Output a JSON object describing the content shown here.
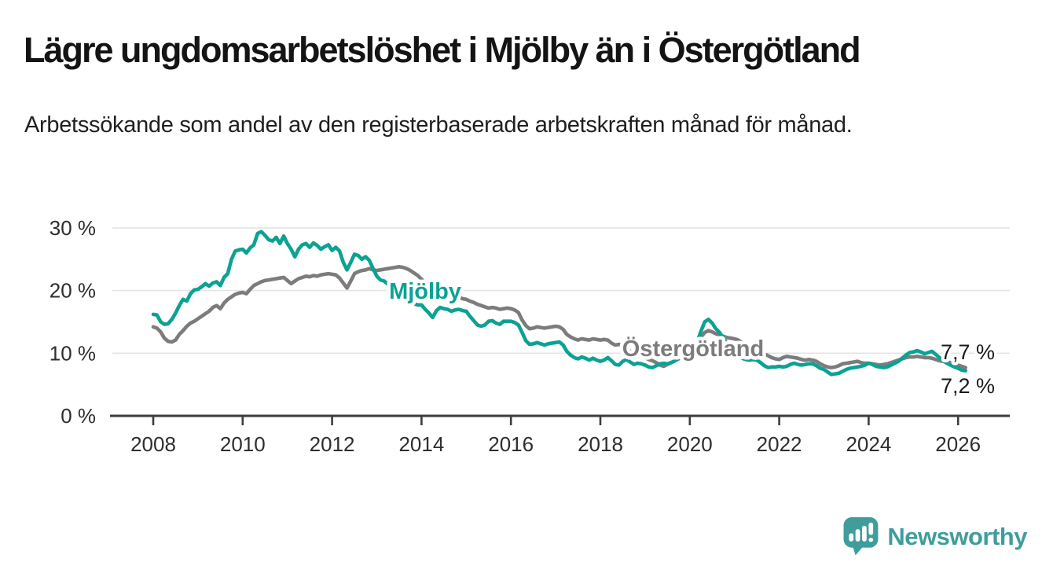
{
  "header": {
    "title": "Lägre ungdomsarbetslöshet i Mjölby än i Östergötland",
    "subtitle": "Arbetssökande som andel av den registerbaserade arbetskraften månad för månad."
  },
  "chart_data": {
    "type": "line",
    "unit": "%",
    "x_start": "2008-01",
    "x_end": "2026-03",
    "x_frequency": "monthly",
    "x_ticks": [
      "2008",
      "2010",
      "2012",
      "2014",
      "2016",
      "2018",
      "2020",
      "2022",
      "2024",
      "2026"
    ],
    "y_ticks": [
      "0 %",
      "10 %",
      "20 %",
      "30 %"
    ],
    "ylim": [
      0,
      32
    ],
    "grid": "horizontal",
    "legend_position": "inline-labels",
    "colors": {
      "mjolby": "#0ba294",
      "ostergotland": "#7c7c7c",
      "grid": "#e4e4e4",
      "axis": "#3d3d3d",
      "text": "#1a1a1a"
    },
    "series": [
      {
        "name": "Östergötland",
        "color": "#7c7c7c",
        "end_label": "7,7 %",
        "label_anchor": [
          882,
          453
        ],
        "end_label_anchor": [
          1197,
          457
        ],
        "values": [
          14.2,
          14.0,
          13.4,
          12.4,
          11.9,
          11.8,
          12.1,
          13.0,
          13.6,
          14.3,
          14.8,
          15.1,
          15.5,
          15.9,
          16.3,
          16.7,
          17.3,
          17.6,
          17.1,
          18.0,
          18.6,
          19.0,
          19.4,
          19.6,
          19.7,
          19.5,
          20.2,
          20.8,
          21.1,
          21.4,
          21.6,
          21.7,
          21.8,
          21.9,
          22.0,
          22.1,
          21.6,
          21.1,
          21.5,
          21.9,
          22.1,
          22.3,
          22.2,
          22.4,
          22.3,
          22.5,
          22.6,
          22.7,
          22.6,
          22.5,
          22.0,
          21.2,
          20.4,
          21.5,
          22.7,
          23.0,
          23.2,
          23.3,
          23.5,
          23.3,
          23.2,
          23.3,
          23.4,
          23.5,
          23.6,
          23.7,
          23.8,
          23.7,
          23.5,
          23.2,
          22.8,
          22.4,
          21.8,
          21.3,
          20.9,
          20.5,
          20.7,
          20.9,
          20.6,
          20.2,
          19.8,
          19.4,
          19.0,
          18.7,
          18.6,
          18.3,
          18.1,
          17.8,
          17.6,
          17.4,
          17.2,
          17.3,
          17.2,
          17.0,
          17.1,
          17.2,
          17.1,
          16.9,
          16.5,
          15.3,
          14.4,
          13.9,
          14.0,
          14.2,
          14.1,
          14.0,
          14.1,
          14.2,
          14.3,
          14.2,
          13.8,
          13.0,
          12.6,
          12.3,
          12.1,
          12.3,
          12.2,
          12.1,
          12.3,
          12.2,
          12.1,
          12.2,
          12.1,
          11.6,
          11.3,
          11.4,
          11.2,
          10.8,
          10.3,
          10.0,
          9.7,
          9.5,
          9.3,
          9.0,
          8.8,
          8.5,
          8.1,
          7.9,
          8.2,
          8.5,
          8.8,
          9.2,
          9.7,
          10.3,
          10.8,
          11.0,
          11.6,
          12.6,
          13.3,
          13.6,
          13.4,
          13.1,
          12.9,
          12.7,
          12.5,
          12.4,
          12.3,
          12.1,
          11.7,
          11.2,
          10.8,
          10.7,
          10.5,
          10.1,
          9.9,
          9.6,
          9.3,
          9.1,
          9.0,
          9.3,
          9.5,
          9.4,
          9.3,
          9.2,
          9.0,
          8.9,
          9.0,
          8.9,
          8.7,
          8.3,
          8.0,
          7.8,
          7.7,
          7.8,
          8.0,
          8.3,
          8.4,
          8.5,
          8.6,
          8.7,
          8.5,
          8.4,
          8.4,
          8.3,
          8.2,
          8.1,
          8.2,
          8.3,
          8.5,
          8.7,
          8.9,
          9.1,
          9.3,
          9.4,
          9.4,
          9.5,
          9.4,
          9.3,
          9.3,
          9.2,
          9.0,
          8.8,
          8.7,
          8.6,
          8.5,
          8.3,
          8.1,
          7.9,
          7.7
        ]
      },
      {
        "name": "Mjölby",
        "color": "#0ba294",
        "end_label": "7,2 %",
        "label_anchor": [
          541,
          380
        ],
        "end_label_anchor": [
          1197,
          500
        ],
        "values": [
          16.2,
          16.1,
          15.0,
          14.6,
          14.7,
          15.4,
          16.4,
          17.6,
          18.6,
          18.3,
          19.5,
          20.1,
          20.2,
          20.6,
          21.1,
          20.7,
          21.2,
          21.4,
          20.8,
          22.1,
          22.7,
          25.0,
          26.3,
          26.5,
          26.6,
          26.0,
          26.8,
          27.3,
          29.1,
          29.4,
          28.8,
          28.1,
          27.9,
          28.5,
          27.5,
          28.7,
          27.5,
          26.6,
          25.4,
          26.6,
          27.3,
          27.5,
          26.9,
          27.6,
          27.2,
          26.6,
          27.0,
          27.3,
          26.4,
          26.9,
          26.3,
          24.5,
          23.3,
          24.5,
          25.8,
          25.6,
          25.0,
          25.4,
          24.8,
          23.5,
          22.3,
          21.7,
          21.5,
          21.0,
          20.5,
          20.0,
          19.5,
          19.0,
          18.6,
          18.2,
          17.9,
          17.7,
          17.7,
          17.0,
          16.4,
          15.7,
          16.8,
          17.3,
          17.1,
          17.0,
          16.7,
          16.9,
          17.0,
          16.8,
          16.7,
          15.9,
          15.2,
          14.5,
          14.3,
          14.5,
          15.1,
          15.2,
          14.8,
          14.6,
          15.1,
          15.1,
          15.1,
          14.9,
          14.5,
          13.3,
          12.0,
          11.4,
          11.5,
          11.7,
          11.5,
          11.3,
          11.5,
          11.6,
          11.7,
          11.8,
          11.3,
          10.3,
          9.7,
          9.3,
          9.1,
          9.4,
          9.2,
          8.9,
          9.2,
          8.9,
          8.7,
          8.9,
          9.3,
          8.8,
          8.2,
          8.1,
          8.7,
          9.0,
          8.6,
          8.2,
          8.4,
          8.3,
          8.1,
          7.8,
          7.7,
          8.0,
          8.3,
          8.4,
          8.3,
          8.5,
          8.8,
          9.1,
          9.5,
          10.0,
          10.4,
          10.8,
          11.8,
          13.5,
          15.0,
          15.4,
          14.8,
          13.9,
          13.3,
          12.4,
          11.6,
          10.9,
          10.3,
          9.7,
          9.2,
          9.0,
          8.9,
          9.0,
          8.9,
          8.5,
          8.0,
          7.7,
          7.8,
          7.8,
          7.9,
          7.8,
          7.9,
          8.2,
          8.4,
          8.2,
          8.1,
          8.2,
          8.3,
          8.3,
          8.0,
          7.6,
          7.4,
          7.0,
          6.6,
          6.7,
          6.8,
          7.1,
          7.4,
          7.6,
          7.7,
          7.8,
          7.9,
          8.1,
          8.4,
          8.2,
          7.9,
          7.8,
          7.7,
          7.8,
          8.1,
          8.4,
          8.7,
          9.2,
          9.7,
          10.1,
          10.2,
          10.4,
          10.2,
          9.9,
          10.1,
          10.3,
          9.8,
          9.3,
          8.8,
          8.4,
          8.1,
          7.8,
          7.6,
          7.3,
          7.2
        ]
      }
    ]
  },
  "footer": {
    "brand": "Newsworthy"
  }
}
